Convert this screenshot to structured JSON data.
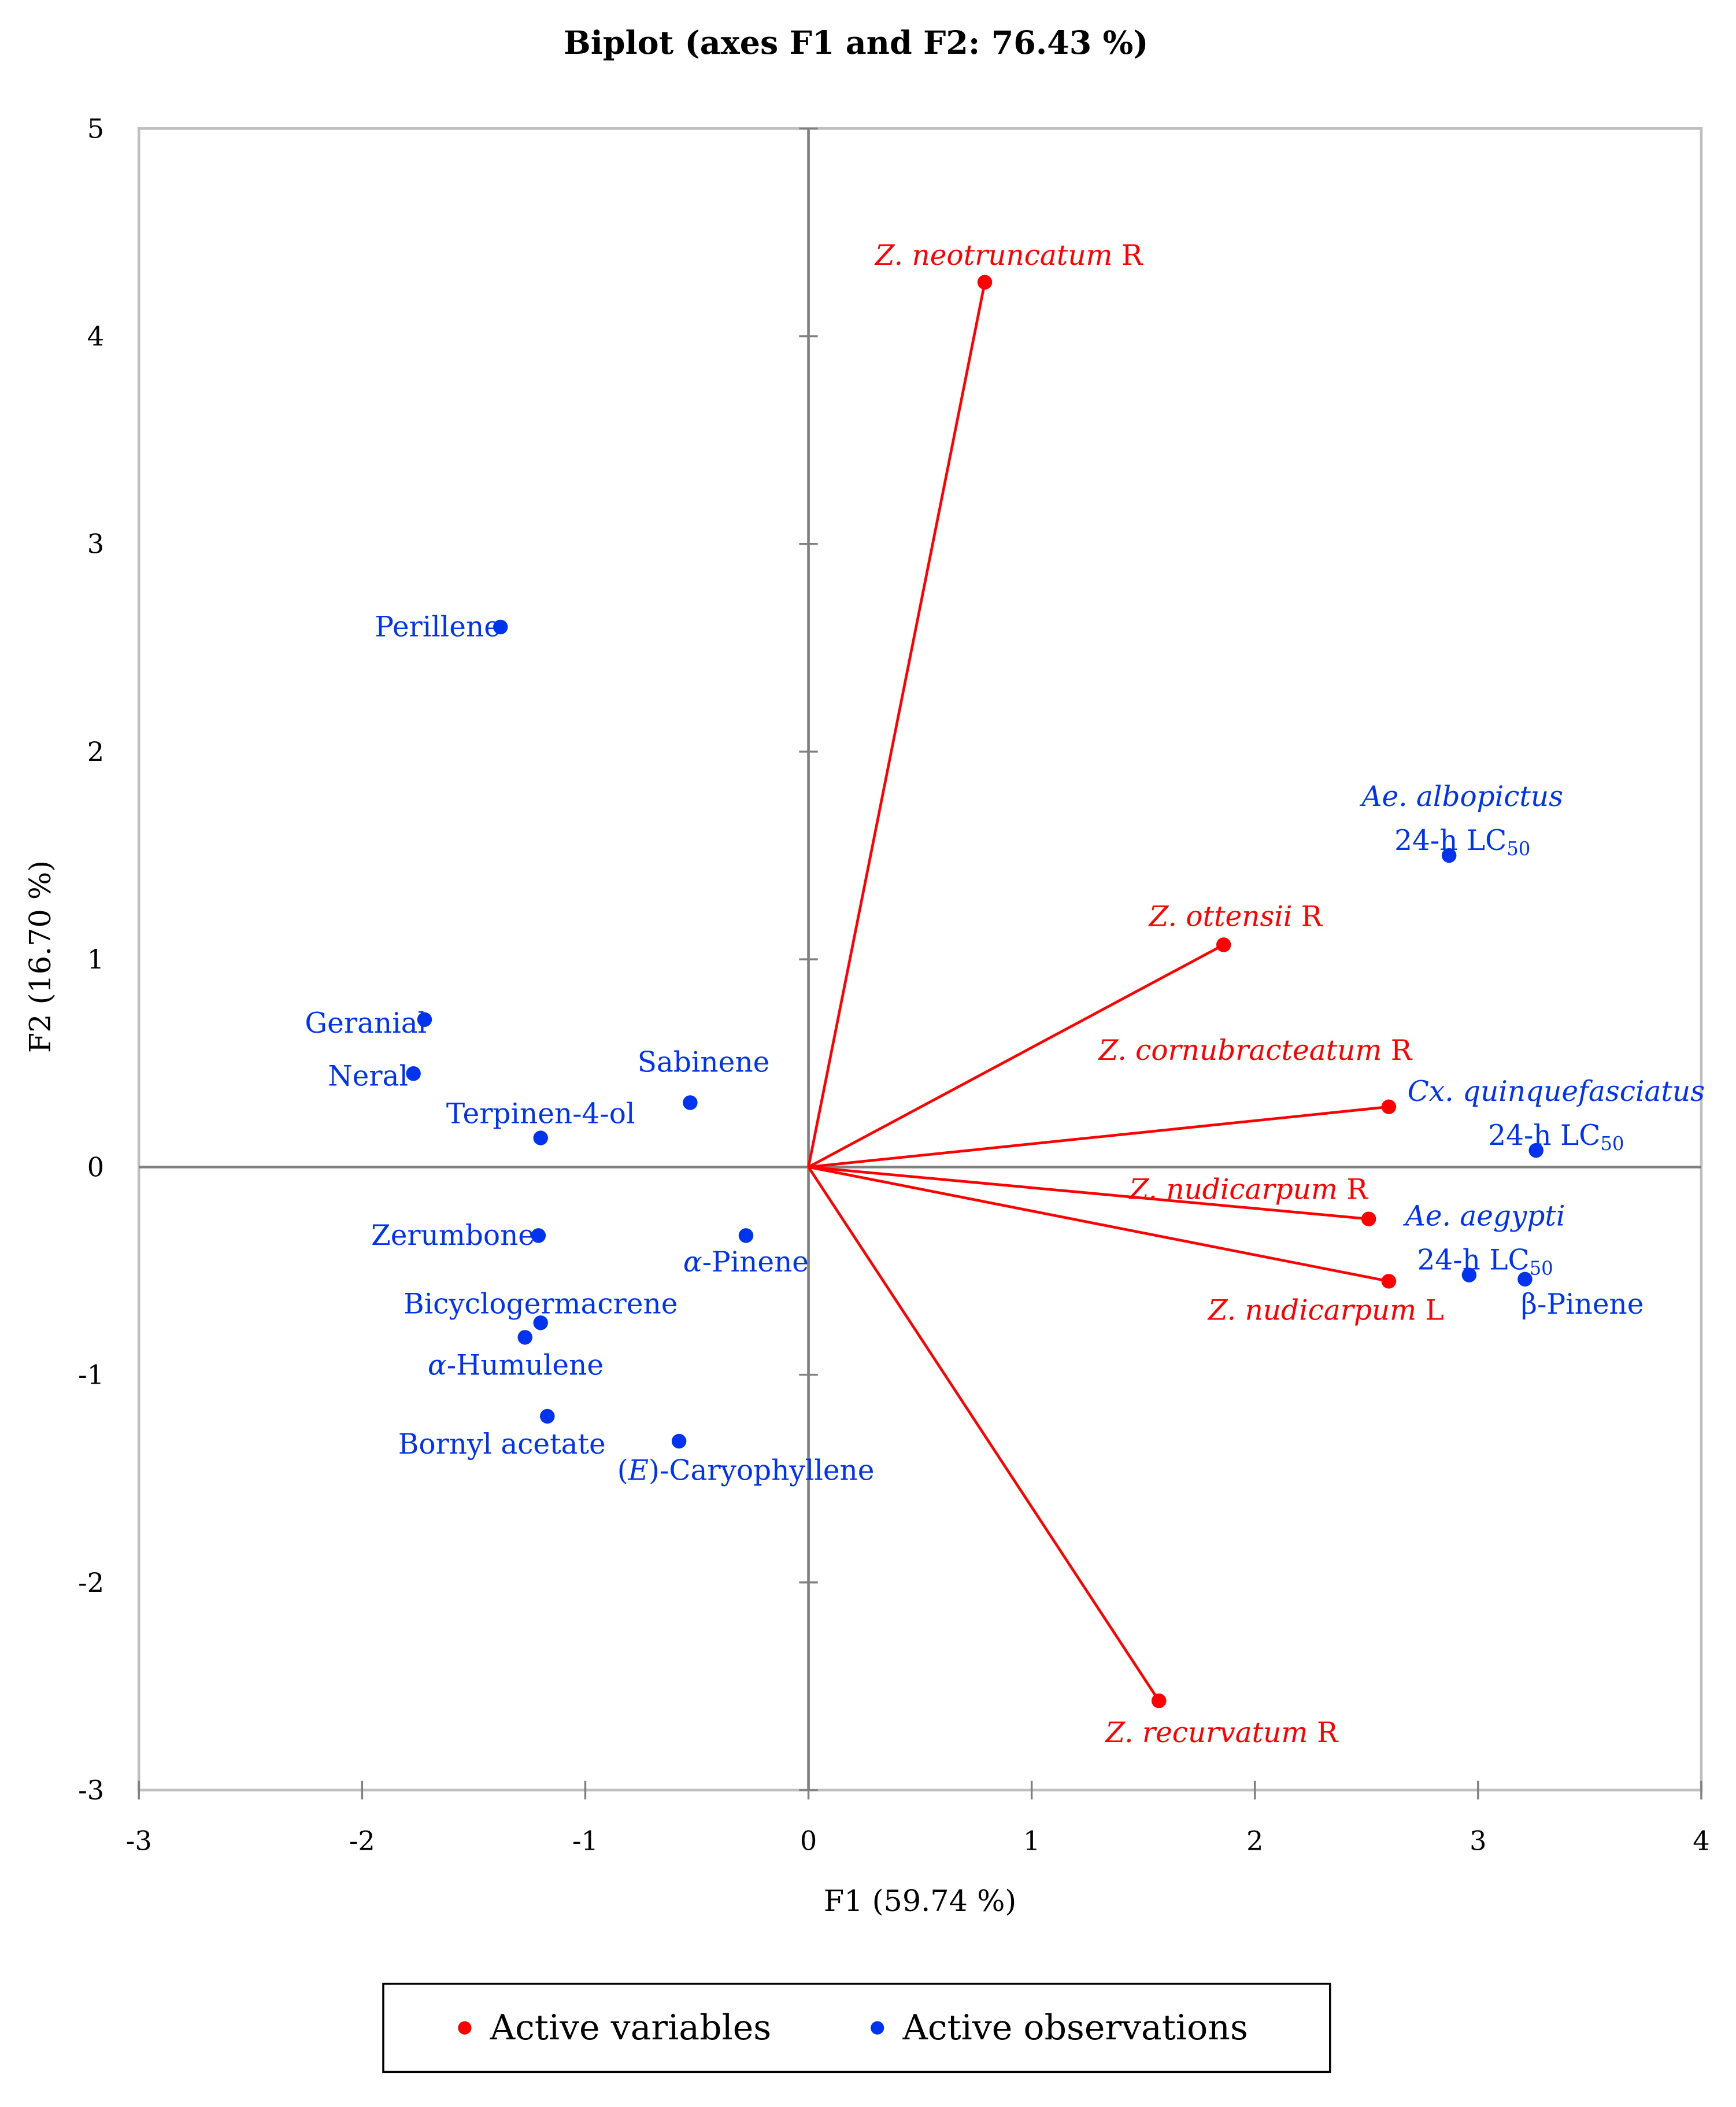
{
  "chart_data": {
    "type": "scatter",
    "title": "Biplot (axes F1 and F2: 76.43 %)",
    "xlabel": "F1 (59.74 %)",
    "ylabel": "F2 (16.70 %)",
    "xlim": [
      -3,
      4
    ],
    "ylim": [
      -3,
      5
    ],
    "xticks": [
      -3,
      -2,
      -1,
      0,
      1,
      2,
      3,
      4
    ],
    "yticks": [
      -3,
      -2,
      -1,
      0,
      1,
      2,
      3,
      4,
      5
    ],
    "grid": false,
    "legend": {
      "position": "bottom",
      "entries": [
        {
          "name": "Active variables",
          "color": "#ff0000"
        },
        {
          "name": "Active observations",
          "color": "#0033ee"
        }
      ]
    },
    "variables": [
      {
        "label": "Z. neotruncatum",
        "suffix": " R",
        "x": 0.79,
        "y": 4.26
      },
      {
        "label": "Z. ottensii",
        "suffix": " R",
        "x": 1.86,
        "y": 1.07
      },
      {
        "label": "Z. cornubracteatum",
        "suffix": " R",
        "x": 2.6,
        "y": 0.29
      },
      {
        "label": "Z. nudicarpum",
        "suffix": " R",
        "x": 2.51,
        "y": -0.25
      },
      {
        "label": "Z. nudicarpum",
        "suffix": " L",
        "x": 2.6,
        "y": -0.55
      },
      {
        "label": "Z. recurvatum",
        "suffix": " R",
        "x": 1.57,
        "y": -2.57
      }
    ],
    "observations": [
      {
        "label": "Perillene",
        "x": -1.38,
        "y": 2.6
      },
      {
        "label": "Geranial",
        "x": -1.72,
        "y": 0.71
      },
      {
        "label": "Neral",
        "x": -1.77,
        "y": 0.45
      },
      {
        "label": "Terpinen-4-ol",
        "x": -1.2,
        "y": 0.14
      },
      {
        "label": "Sabinene",
        "x": -0.53,
        "y": 0.31
      },
      {
        "label": "Zerumbone",
        "x": -1.21,
        "y": -0.33
      },
      {
        "label": "α-Pinene",
        "x": -0.28,
        "y": -0.33
      },
      {
        "label": "Bicyclogermacrene",
        "x": -1.2,
        "y": -0.75
      },
      {
        "label": "α-Humulene",
        "x": -1.27,
        "y": -0.82
      },
      {
        "label": "Bornyl acetate",
        "x": -1.17,
        "y": -1.2
      },
      {
        "label": "(E)-Caryophyllene",
        "x": -0.58,
        "y": -1.32
      },
      {
        "label": "Ae. albopictus",
        "line2": "24-h LC",
        "sub": "50",
        "x": 2.87,
        "y": 1.5
      },
      {
        "label": "Cx. quinquefasciatus",
        "line2": "24-h LC",
        "sub": "50",
        "x": 3.26,
        "y": 0.08
      },
      {
        "label": "Ae. aegypti",
        "line2": "24-h LC",
        "sub": "50",
        "x": 2.96,
        "y": -0.52
      },
      {
        "label": "β-Pinene",
        "x": 3.21,
        "y": -0.54
      }
    ]
  }
}
